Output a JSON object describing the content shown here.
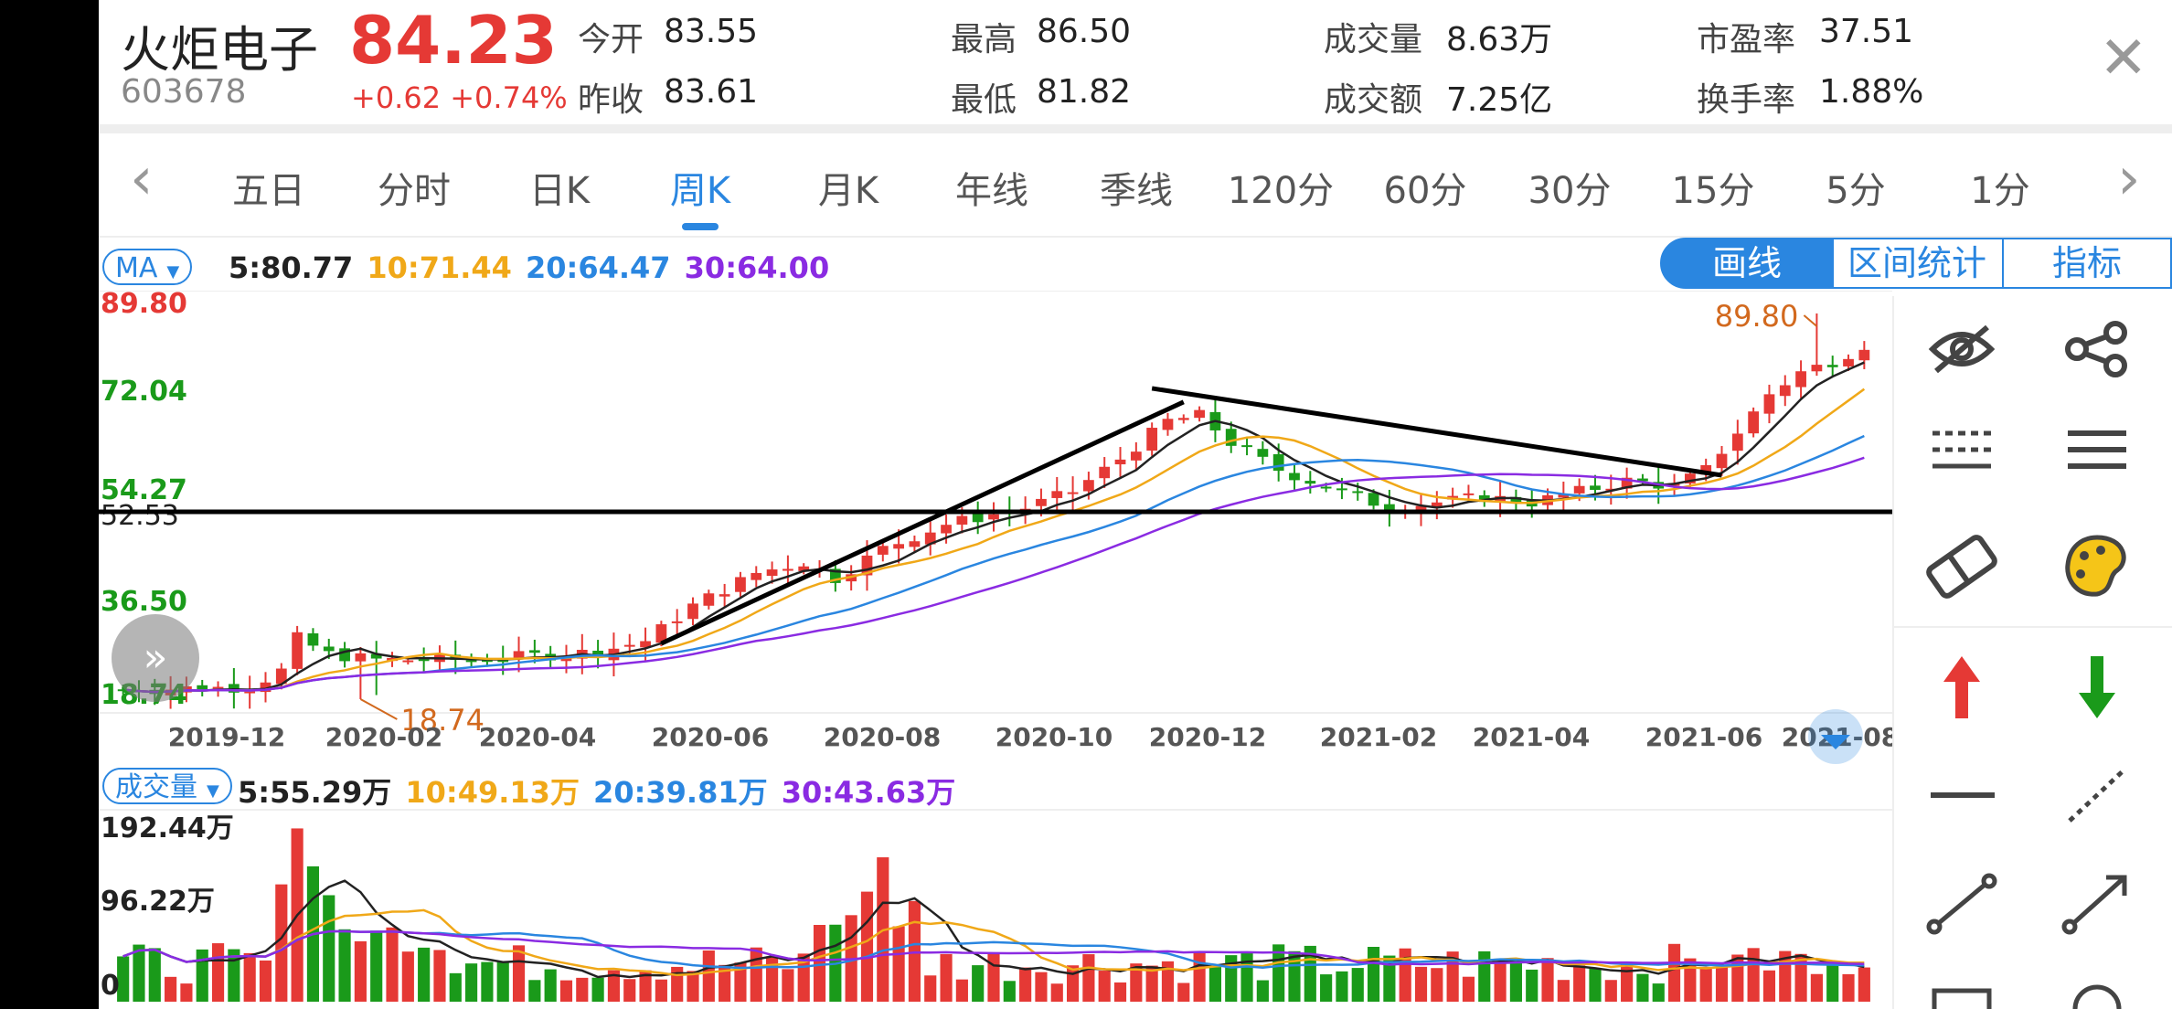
{
  "stock": {
    "name": "火炬电子",
    "code": "603678",
    "price": "84.23",
    "change": "+0.62",
    "change_pct": "+0.74%",
    "quotes": [
      {
        "label": "今开",
        "value": "83.55"
      },
      {
        "label": "昨收",
        "value": "83.61"
      },
      {
        "label": "最高",
        "value": "86.50"
      },
      {
        "label": "最低",
        "value": "81.82"
      },
      {
        "label": "成交量",
        "value": "8.63万"
      },
      {
        "label": "成交额",
        "value": "7.25亿"
      },
      {
        "label": "市盈率",
        "value": "37.51"
      },
      {
        "label": "换手率",
        "value": "1.88%"
      }
    ]
  },
  "tabs": [
    "五日",
    "分时",
    "日K",
    "周K",
    "月K",
    "年线",
    "季线",
    "120分",
    "60分",
    "30分",
    "15分",
    "5分",
    "1分"
  ],
  "active_tab": "周K",
  "ma": {
    "selector": "MA",
    "values": [
      {
        "label": "5:80.77",
        "color": "#222222"
      },
      {
        "label": "10:71.44",
        "color": "#f0a818"
      },
      {
        "label": "20:64.47",
        "color": "#2a86e0"
      },
      {
        "label": "30:64.00",
        "color": "#8a2be2"
      }
    ]
  },
  "tools": {
    "draw": "画线",
    "range": "区间统计",
    "indicator": "指标"
  },
  "price_axis": [
    {
      "label": "89.80",
      "color": "#e53935"
    },
    {
      "label": "72.04",
      "color": "#1a9a1a"
    },
    {
      "label": "54.27",
      "color": "#1a9a1a"
    },
    {
      "label": "36.50",
      "color": "#1a9a1a"
    },
    {
      "label": "18.74",
      "color": "#1a9a1a"
    }
  ],
  "hline_label": "52.53",
  "high_marker": "89.80",
  "low_marker": "18.74",
  "date_axis": [
    "2019-12",
    "2020-02",
    "2020-04",
    "2020-06",
    "2020-08",
    "2020-10",
    "2020-12",
    "2021-02",
    "2021-04",
    "2021-06",
    "2021-08"
  ],
  "volume": {
    "selector": "成交量",
    "values": [
      {
        "label": "5:55.29万",
        "color": "#222222"
      },
      {
        "label": "10:49.13万",
        "color": "#f0a818"
      },
      {
        "label": "20:39.81万",
        "color": "#2a86e0"
      },
      {
        "label": "30:43.63万",
        "color": "#8a2be2"
      }
    ],
    "axis": [
      "192.44万",
      "96.22万",
      "0"
    ]
  },
  "side_icons": [
    "eye-off-icon",
    "share-icon",
    "dashed-lines-icon",
    "solid-lines-icon",
    "eraser-icon",
    "palette-icon",
    "arrow-up-icon",
    "arrow-down-icon",
    "horizontal-line-icon",
    "dotted-line-icon",
    "segment-icon",
    "ray-arrow-icon"
  ],
  "colors": {
    "up": "#e53935",
    "down": "#1a9a1a",
    "accent": "#2a86e0"
  }
}
